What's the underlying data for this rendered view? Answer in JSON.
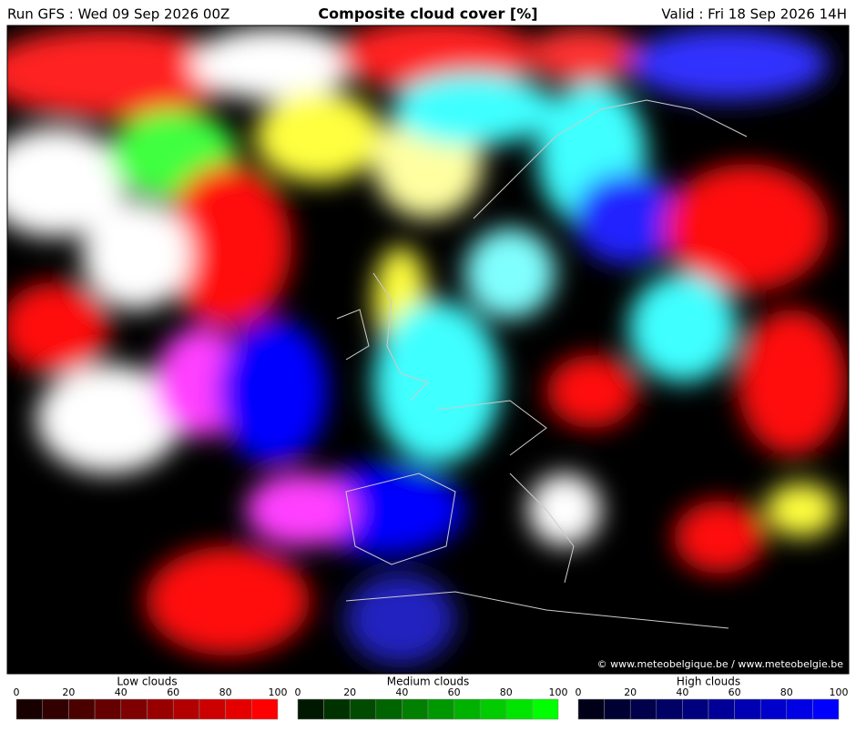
{
  "header": {
    "run": "Run GFS : Wed 09 Sep 2026 00Z",
    "title": "Composite cloud cover [%]",
    "valid": "Valid : Fri 18 Sep 2026 14H"
  },
  "map": {
    "credit": "© www.meteobelgique.be / www.meteobelgie.be"
  },
  "legends": [
    {
      "title": "Low clouds",
      "ticks": [
        0,
        20,
        40,
        60,
        80,
        100
      ]
    },
    {
      "title": "Medium clouds",
      "ticks": [
        0,
        20,
        40,
        60,
        80,
        100
      ]
    },
    {
      "title": "High clouds",
      "ticks": [
        0,
        20,
        40,
        60,
        80,
        100
      ]
    }
  ]
}
